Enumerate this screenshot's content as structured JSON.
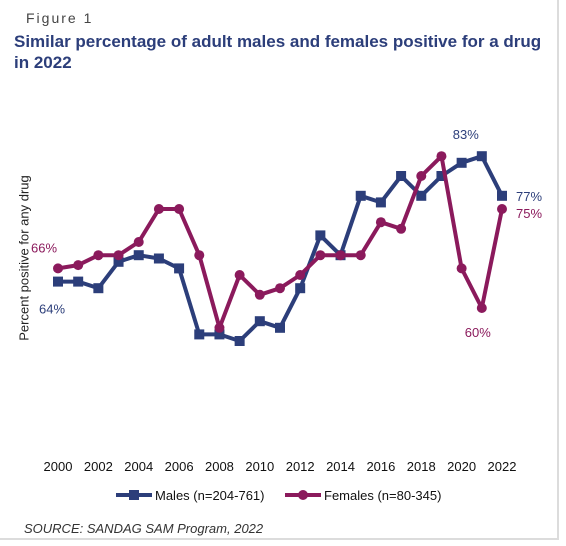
{
  "figure_label": "Figure 1",
  "chart_data": {
    "type": "line",
    "title": "Similar percentage of adult males and females positive for a drug in 2022",
    "xlabel": "",
    "ylabel": "Percent positive for any drug",
    "source": "SOURCE: SANDAG SAM Program, 2022",
    "x": [
      2000,
      2001,
      2002,
      2003,
      2004,
      2005,
      2006,
      2007,
      2008,
      2009,
      2010,
      2011,
      2012,
      2013,
      2014,
      2015,
      2016,
      2017,
      2018,
      2019,
      2020,
      2021,
      2022
    ],
    "x_tick_labels": [
      "2000",
      "2002",
      "2004",
      "2006",
      "2008",
      "2010",
      "2012",
      "2014",
      "2016",
      "2018",
      "2020",
      "2022"
    ],
    "ylim": [
      40,
      90
    ],
    "grid": false,
    "legend_position": "bottom",
    "series": [
      {
        "name": "Males (n=204-761)",
        "color": "#2c3e7a",
        "marker": "square",
        "values": [
          64,
          64,
          63,
          67,
          68,
          67.5,
          66,
          56,
          56,
          55,
          58,
          57,
          63,
          71,
          68,
          77,
          76,
          80,
          77,
          80,
          82,
          83,
          77
        ]
      },
      {
        "name": "Females (n=80-345)",
        "color": "#8b1a5c",
        "marker": "circle",
        "values": [
          66,
          66.5,
          68,
          68,
          70,
          75,
          75,
          68,
          57,
          65,
          62,
          63,
          65,
          68,
          68,
          68,
          73,
          72,
          80,
          83,
          66,
          60,
          75
        ]
      }
    ],
    "annotations": [
      {
        "text": "66%",
        "series": 1,
        "x": 2000
      },
      {
        "text": "64%",
        "series": 0,
        "x": 2000
      },
      {
        "text": "83%",
        "series": 0,
        "x": 2021
      },
      {
        "text": "77%",
        "series": 0,
        "x": 2022
      },
      {
        "text": "75%",
        "series": 1,
        "x": 2022
      },
      {
        "text": "60%",
        "series": 1,
        "x": 2021
      }
    ]
  }
}
